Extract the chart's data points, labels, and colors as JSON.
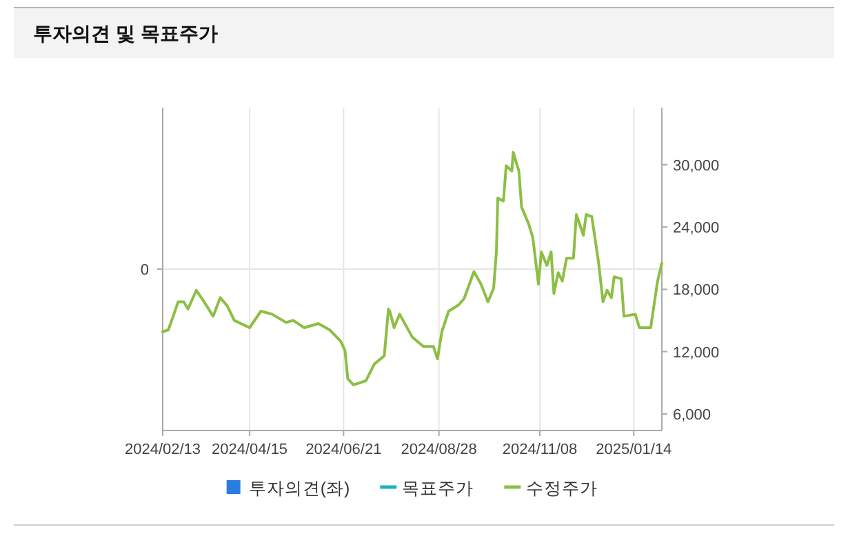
{
  "chart_data": {
    "type": "line",
    "title": "투자의견 및 목표주가",
    "xlim": [
      "2024-02-13",
      "2025-02-03"
    ],
    "xticks": [
      {
        "value": "2024-02-13",
        "label": "2024/02/13"
      },
      {
        "value": "2024-04-15",
        "label": "2024/04/15"
      },
      {
        "value": "2024-06-21",
        "label": "2024/06/21"
      },
      {
        "value": "2024-08-28",
        "label": "2024/08/28"
      },
      {
        "value": "2024-11-08",
        "label": "2024/11/08"
      },
      {
        "value": "2025-01-14",
        "label": "2025/01/14"
      }
    ],
    "annotations": [
      "0"
    ],
    "y2lim": [
      4400,
      35500
    ],
    "y2ticks": [
      {
        "value": 6000,
        "label": "6,000"
      },
      {
        "value": 12000,
        "label": "12,000"
      },
      {
        "value": 18000,
        "label": "18,000"
      },
      {
        "value": 24000,
        "label": "24,000"
      },
      {
        "value": 30000,
        "label": "30,000"
      }
    ],
    "grid": true,
    "legend": "bottom",
    "line_style": "solid",
    "marker": "none",
    "series": [
      {
        "name": "투자의견(좌)",
        "type": "bar",
        "color": "#2b7de1"
      },
      {
        "name": "목표주가",
        "color": "#17b3c8"
      },
      {
        "name": "수정주가",
        "axis": "y2",
        "color": "#8dbe45",
        "x": [
          "2024-02-13",
          "2024-02-17",
          "2024-02-20",
          "2024-02-24",
          "2024-02-28",
          "2024-03-02",
          "2024-03-08",
          "2024-03-12",
          "2024-03-20",
          "2024-03-25",
          "2024-03-30",
          "2024-04-04",
          "2024-04-15",
          "2024-04-23",
          "2024-05-01",
          "2024-05-11",
          "2024-05-16",
          "2024-05-24",
          "2024-06-03",
          "2024-06-11",
          "2024-06-19",
          "2024-06-22",
          "2024-06-24",
          "2024-06-28",
          "2024-07-07",
          "2024-07-13",
          "2024-07-20",
          "2024-07-23",
          "2024-07-24",
          "2024-07-27",
          "2024-07-31",
          "2024-08-09",
          "2024-08-17",
          "2024-08-24",
          "2024-08-27",
          "2024-08-30",
          "2024-09-04",
          "2024-09-11",
          "2024-09-15",
          "2024-09-22",
          "2024-09-27",
          "2024-10-02",
          "2024-10-06",
          "2024-10-08",
          "2024-10-09",
          "2024-10-13",
          "2024-10-15",
          "2024-10-19",
          "2024-10-20",
          "2024-10-24",
          "2024-10-26",
          "2024-10-31",
          "2024-11-03",
          "2024-11-07",
          "2024-11-09",
          "2024-11-13",
          "2024-11-16",
          "2024-11-18",
          "2024-11-21",
          "2024-11-24",
          "2024-11-27",
          "2024-12-02",
          "2024-12-04",
          "2024-12-09",
          "2024-12-11",
          "2024-12-15",
          "2024-12-20",
          "2024-12-23",
          "2024-12-26",
          "2024-12-29",
          "2024-12-31",
          "2025-01-05",
          "2025-01-07",
          "2025-01-15",
          "2025-01-18",
          "2025-01-26",
          "2025-01-28",
          "2025-01-31",
          "2025-02-03"
        ],
        "values": [
          13900,
          14100,
          15200,
          16800,
          16800,
          16100,
          17900,
          17100,
          15400,
          17200,
          16400,
          15000,
          14300,
          15900,
          15600,
          14800,
          15000,
          14300,
          14700,
          14100,
          13000,
          12100,
          9400,
          8800,
          9200,
          10800,
          11600,
          16100,
          15900,
          14300,
          15600,
          13400,
          12500,
          12500,
          11300,
          13900,
          15900,
          16500,
          17100,
          19700,
          18500,
          16800,
          18100,
          21600,
          26800,
          26500,
          29900,
          29400,
          31200,
          29400,
          25900,
          24300,
          23000,
          18500,
          21600,
          20300,
          21600,
          17600,
          19600,
          18800,
          21000,
          21000,
          25200,
          23200,
          25200,
          25000,
          20500,
          16800,
          17900,
          17200,
          19200,
          19000,
          15400,
          15600,
          14300,
          14300,
          16100,
          18800,
          20500
        ]
      }
    ]
  }
}
